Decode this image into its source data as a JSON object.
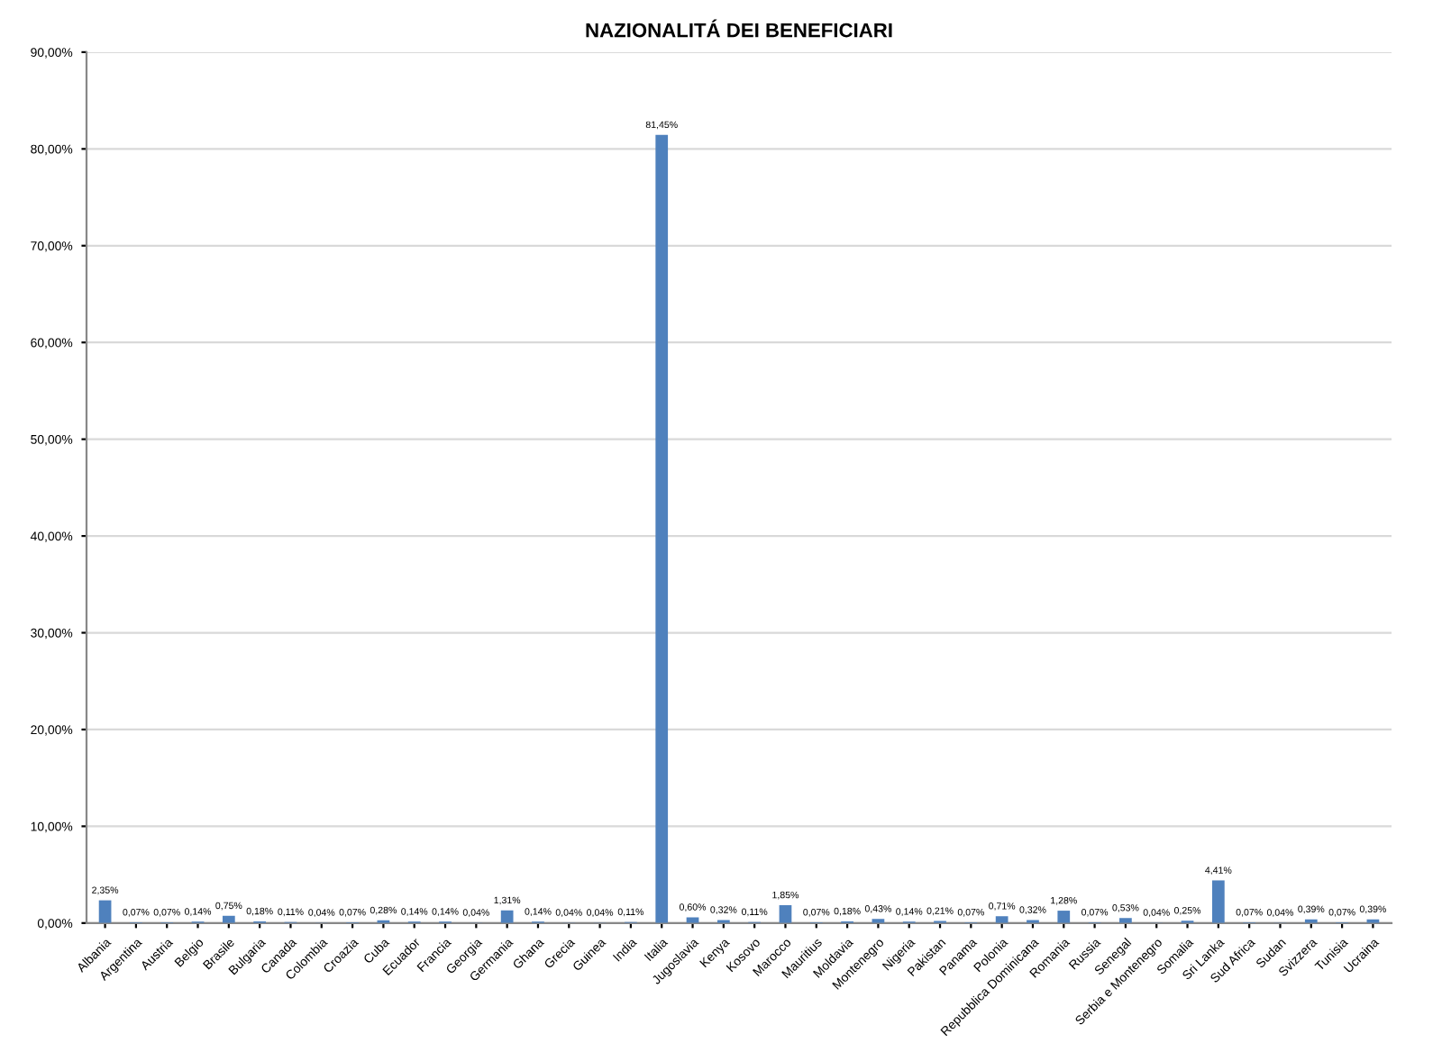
{
  "chart_data": {
    "type": "bar",
    "title": "NAZIONALITÁ DEI BENEFICIARI",
    "categories": [
      "Albania",
      "Argentina",
      "Austria",
      "Belgio",
      "Brasile",
      "Bulgaria",
      "Canada",
      "Colombia",
      "Croazia",
      "Cuba",
      "Ecuador",
      "Francia",
      "Georgia",
      "Germania",
      "Ghana",
      "Grecia",
      "Guinea",
      "India",
      "Italia",
      "Jugoslavia",
      "Kenya",
      "Kosovo",
      "Marocco",
      "Mauritius",
      "Moldavia",
      "Montenegro",
      "Nigeria",
      "Pakistan",
      "Panama",
      "Polonia",
      "Repubblica Dominicana",
      "Romania",
      "Russia",
      "Senegal",
      "Serbia e Montenegro",
      "Somalia",
      "Sri Lanka",
      "Sud Africa",
      "Sudan",
      "Svizzera",
      "Tunisia",
      "Ucraina"
    ],
    "values": [
      2.35,
      0.07,
      0.07,
      0.14,
      0.75,
      0.18,
      0.11,
      0.04,
      0.07,
      0.28,
      0.14,
      0.14,
      0.04,
      1.31,
      0.14,
      0.04,
      0.04,
      0.11,
      81.45,
      0.6,
      0.32,
      0.11,
      1.85,
      0.07,
      0.18,
      0.43,
      0.14,
      0.21,
      0.07,
      0.71,
      0.32,
      1.28,
      0.07,
      0.53,
      0.04,
      0.25,
      4.41,
      0.07,
      0.04,
      0.39,
      0.07,
      0.39
    ],
    "value_labels": [
      "2,35%",
      "0,07%",
      "0,07%",
      "0,14%",
      "0,75%",
      "0,18%",
      "0,11%",
      "0,04%",
      "0,07%",
      "0,28%",
      "0,14%",
      "0,14%",
      "0,04%",
      "1,31%",
      "0,14%",
      "0,04%",
      "0,04%",
      "0,11%",
      "81,45%",
      "0,60%",
      "0,32%",
      "0,11%",
      "1,85%",
      "0,07%",
      "0,18%",
      "0,43%",
      "0,14%",
      "0,21%",
      "0,07%",
      "0,71%",
      "0,32%",
      "1,28%",
      "0,07%",
      "0,53%",
      "0,04%",
      "0,25%",
      "4,41%",
      "0,07%",
      "0,04%",
      "0,39%",
      "0,07%",
      "0,39%"
    ],
    "color": "#4f81bd",
    "ylim": [
      0,
      90
    ],
    "yticks": [
      {
        "value": 0,
        "label": "0,00%"
      },
      {
        "value": 10,
        "label": "10,00%"
      },
      {
        "value": 20,
        "label": "20,00%"
      },
      {
        "value": 30,
        "label": "30,00%"
      },
      {
        "value": 40,
        "label": "40,00%"
      },
      {
        "value": 50,
        "label": "50,00%"
      },
      {
        "value": 60,
        "label": "60,00%"
      },
      {
        "value": 70,
        "label": "70,00%"
      },
      {
        "value": 80,
        "label": "80,00%"
      },
      {
        "value": 90,
        "label": "90,00%"
      }
    ],
    "grid": "y",
    "legend": false
  }
}
